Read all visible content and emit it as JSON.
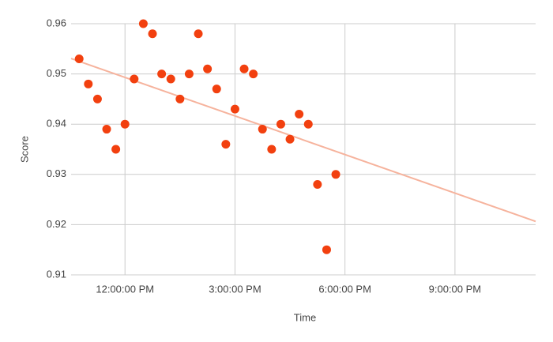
{
  "chart_data": {
    "type": "scatter",
    "x_label": "Time",
    "y_label": "Score",
    "x": [
      10.75,
      11,
      11.25,
      11.5,
      11.75,
      12,
      12.25,
      12.5,
      12.75,
      13,
      13.25,
      13.5,
      13.75,
      14,
      14.25,
      14.5,
      14.75,
      15,
      15.25,
      15.5,
      15.75,
      16,
      16.25,
      16.5,
      16.75,
      17,
      17.25,
      17.5,
      17.75
    ],
    "values": [
      0.953,
      0.948,
      0.945,
      0.939,
      0.935,
      0.94,
      0.949,
      0.96,
      0.958,
      0.95,
      0.949,
      0.945,
      0.95,
      0.958,
      0.951,
      0.947,
      0.936,
      0.943,
      0.951,
      0.95,
      0.939,
      0.935,
      0.94,
      0.937,
      0.942,
      0.94,
      0.928,
      0.915,
      0.93
    ],
    "color": "#f2400f",
    "trendline": true,
    "trendline_color": "#f6b39d",
    "xlim": [
      10.53,
      23.2
    ],
    "xticks": [
      {
        "value": 12,
        "label": "12:00:00 PM"
      },
      {
        "value": 15,
        "label": "3:00:00 PM"
      },
      {
        "value": 18,
        "label": "6:00:00 PM"
      },
      {
        "value": 21,
        "label": "9:00:00 PM"
      }
    ],
    "ylim": [
      0.91,
      0.96
    ],
    "yticks": [
      0.91,
      0.92,
      0.93,
      0.94,
      0.95,
      0.96
    ],
    "grid": true
  }
}
